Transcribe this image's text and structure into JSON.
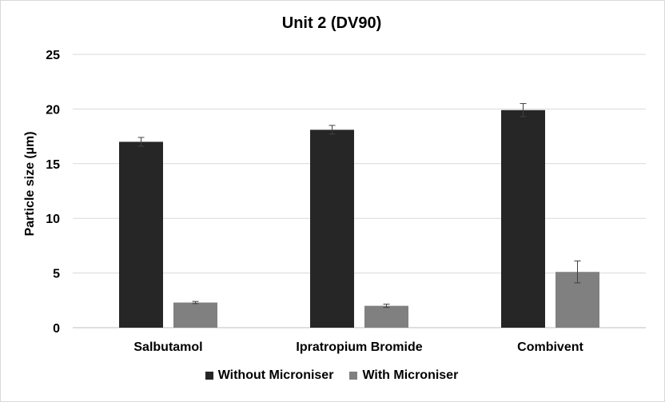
{
  "chart_data": {
    "type": "bar",
    "title": "Unit 2 (DV90)",
    "xlabel": "",
    "ylabel": "Particle size (µm)",
    "ylim": [
      0,
      25
    ],
    "yticks": [
      "0",
      "5",
      "10",
      "15",
      "20",
      "25"
    ],
    "grid": true,
    "legend_position": "bottom",
    "categories": [
      "Salbutamol",
      "Ipratropium Bromide",
      "Combivent"
    ],
    "series": [
      {
        "name": "Without Microniser",
        "color": "#262626",
        "values": [
          17.0,
          18.1,
          19.9
        ],
        "errors": [
          0.4,
          0.4,
          0.6
        ]
      },
      {
        "name": "With Microniser",
        "color": "#808080",
        "values": [
          2.3,
          2.0,
          5.1
        ],
        "errors": [
          0.1,
          0.15,
          1.0
        ]
      }
    ]
  }
}
